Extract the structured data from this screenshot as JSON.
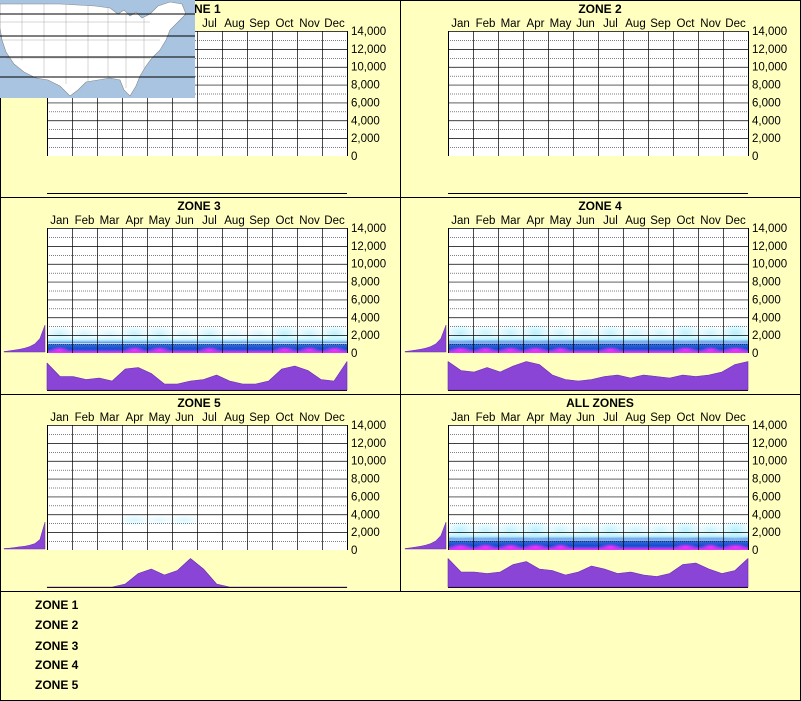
{
  "months": [
    "Jan",
    "Feb",
    "Mar",
    "Apr",
    "May",
    "Jun",
    "Jul",
    "Aug",
    "Sep",
    "Oct",
    "Nov",
    "Dec"
  ],
  "yticks": [
    "14,000",
    "12,000",
    "10,000",
    "8,000",
    "6,000",
    "4,000",
    "2,000",
    "0"
  ],
  "colors": {
    "background": "#ffffc0",
    "density_low": "#b0f0ff",
    "density_mid": "#1050d0",
    "density_high": "#ff30ff",
    "profile_fill": "#8a44d6",
    "map_water": "#a8c4e0",
    "map_land": "#ffffff"
  },
  "chart_data": [
    {
      "type": "heatmap",
      "title": "ZONE 1",
      "x": [
        "Jan",
        "Feb",
        "Mar",
        "Apr",
        "May",
        "Jun",
        "Jul",
        "Aug",
        "Sep",
        "Oct",
        "Nov",
        "Dec"
      ],
      "ylim": [
        0,
        14000
      ],
      "band_max": null,
      "density_by_month": [],
      "elevation_profile": [],
      "monthly_profile": []
    },
    {
      "type": "heatmap",
      "title": "ZONE 2",
      "x": [
        "Jan",
        "Feb",
        "Mar",
        "Apr",
        "May",
        "Jun",
        "Jul",
        "Aug",
        "Sep",
        "Oct",
        "Nov",
        "Dec"
      ],
      "ylim": [
        0,
        14000
      ],
      "band_max": null,
      "density_by_month": [],
      "elevation_profile": [],
      "monthly_profile": []
    },
    {
      "type": "heatmap",
      "title": "ZONE 3",
      "x": [
        "Jan",
        "Feb",
        "Mar",
        "Apr",
        "May",
        "Jun",
        "Jul",
        "Aug",
        "Sep",
        "Oct",
        "Nov",
        "Dec"
      ],
      "ylim": [
        0,
        14000
      ],
      "band_max": 1800,
      "density_by_month": [
        0.55,
        0.4,
        0.35,
        0.6,
        0.6,
        0.35,
        0.55,
        0.3,
        0.35,
        0.7,
        0.55,
        0.7
      ],
      "elevation_profile": [
        0.02,
        0.04,
        0.07,
        0.1,
        0.14,
        0.2,
        0.3,
        0.5,
        1.0
      ],
      "monthly_profile": [
        0.9,
        0.45,
        0.45,
        0.35,
        0.4,
        0.3,
        0.7,
        0.75,
        0.55,
        0.2,
        0.2,
        0.3,
        0.35,
        0.5,
        0.3,
        0.2,
        0.2,
        0.3,
        0.7,
        0.8,
        0.65,
        0.35,
        0.3,
        0.95
      ]
    },
    {
      "type": "heatmap",
      "title": "ZONE 4",
      "x": [
        "Jan",
        "Feb",
        "Mar",
        "Apr",
        "May",
        "Jun",
        "Jul",
        "Aug",
        "Sep",
        "Oct",
        "Nov",
        "Dec"
      ],
      "ylim": [
        0,
        14000
      ],
      "band_max": 1900,
      "density_by_month": [
        0.7,
        0.55,
        0.6,
        0.75,
        0.5,
        0.45,
        0.6,
        0.45,
        0.45,
        0.7,
        0.5,
        0.8
      ],
      "elevation_profile": [
        0.02,
        0.04,
        0.07,
        0.1,
        0.14,
        0.2,
        0.3,
        0.5,
        1.0
      ],
      "monthly_profile": [
        0.95,
        0.65,
        0.6,
        0.75,
        0.6,
        0.8,
        0.95,
        0.85,
        0.5,
        0.35,
        0.3,
        0.35,
        0.45,
        0.5,
        0.4,
        0.5,
        0.45,
        0.4,
        0.5,
        0.45,
        0.5,
        0.6,
        0.85,
        0.95
      ]
    },
    {
      "type": "heatmap",
      "title": "ZONE 5",
      "x": [
        "Jan",
        "Feb",
        "Mar",
        "Apr",
        "May",
        "Jun",
        "Jul",
        "Aug",
        "Sep",
        "Oct",
        "Nov",
        "Dec"
      ],
      "ylim": [
        0,
        14000
      ],
      "band_max": 3000,
      "density_by_month": [
        0,
        0,
        0,
        0.35,
        0.2,
        0.3,
        0,
        0,
        0,
        0,
        0,
        0
      ],
      "elevation_profile": [
        0.02,
        0.03,
        0.05,
        0.08,
        0.1,
        0.14,
        0.2,
        0.35,
        1.0
      ],
      "monthly_profile": [
        0,
        0,
        0,
        0,
        0,
        0,
        0.1,
        0.45,
        0.6,
        0.4,
        0.55,
        0.95,
        0.6,
        0.1,
        0,
        0,
        0,
        0,
        0,
        0,
        0,
        0,
        0,
        0
      ]
    },
    {
      "type": "heatmap",
      "title": "ALL ZONES",
      "x": [
        "Jan",
        "Feb",
        "Mar",
        "Apr",
        "May",
        "Jun",
        "Jul",
        "Aug",
        "Sep",
        "Oct",
        "Nov",
        "Dec"
      ],
      "ylim": [
        0,
        14000
      ],
      "band_max": 1900,
      "density_by_month": [
        0.7,
        0.55,
        0.6,
        0.75,
        0.5,
        0.45,
        0.6,
        0.45,
        0.45,
        0.7,
        0.5,
        0.8
      ],
      "elevation_profile": [
        0.02,
        0.04,
        0.07,
        0.1,
        0.14,
        0.2,
        0.3,
        0.5,
        1.0
      ],
      "monthly_profile": [
        0.95,
        0.5,
        0.5,
        0.45,
        0.5,
        0.75,
        0.85,
        0.6,
        0.55,
        0.4,
        0.5,
        0.7,
        0.6,
        0.45,
        0.5,
        0.4,
        0.35,
        0.45,
        0.75,
        0.8,
        0.6,
        0.45,
        0.55,
        0.95
      ]
    }
  ],
  "legend": {
    "zones": [
      "ZONE 1",
      "ZONE 2",
      "ZONE 3",
      "ZONE 4",
      "ZONE 5"
    ]
  }
}
